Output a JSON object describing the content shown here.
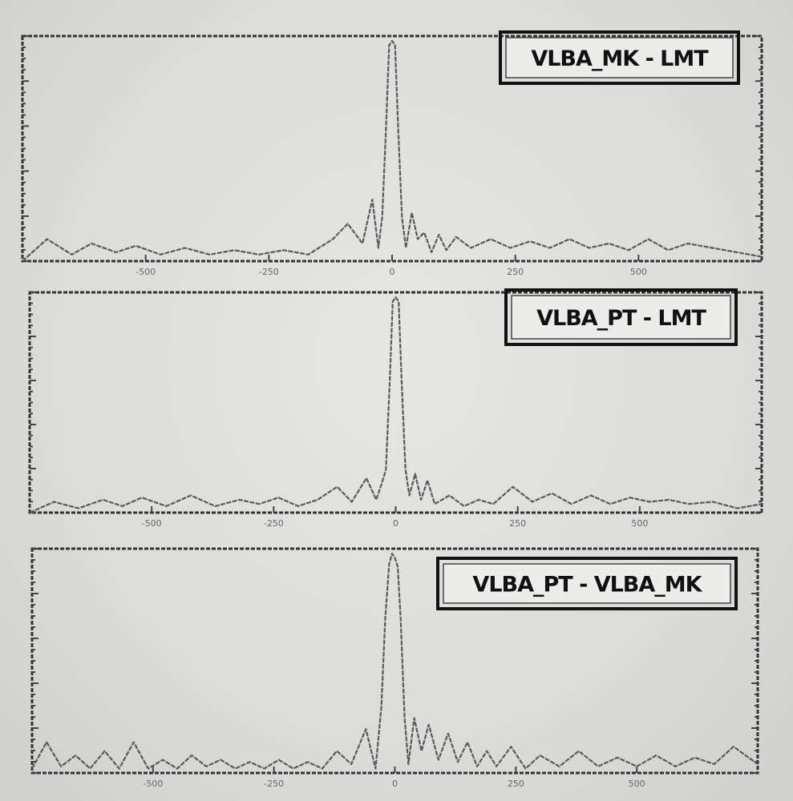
{
  "chart_data": [
    {
      "type": "line",
      "legend": "VLBA_MK - LMT",
      "legend_position": "top-right",
      "x_tick_labels": [
        "-500",
        "-250",
        "0",
        "250",
        "500"
      ],
      "xlim": [
        -750,
        750
      ],
      "ylim": [
        0,
        1
      ],
      "grid": false,
      "series": [
        {
          "x": [
            -750,
            -700,
            -650,
            -610,
            -560,
            -520,
            -470,
            -420,
            -370,
            -320,
            -270,
            -220,
            -170,
            -120,
            -90,
            -60,
            -40,
            -28,
            -20,
            -12,
            -6,
            0,
            6,
            12,
            20,
            28,
            40,
            52,
            65,
            80,
            95,
            110,
            130,
            160,
            200,
            240,
            280,
            320,
            360,
            400,
            440,
            480,
            520,
            560,
            600,
            650,
            700,
            750
          ],
          "y": [
            0.0,
            0.1,
            0.03,
            0.08,
            0.04,
            0.07,
            0.03,
            0.06,
            0.03,
            0.05,
            0.03,
            0.05,
            0.03,
            0.1,
            0.17,
            0.08,
            0.28,
            0.06,
            0.2,
            0.62,
            0.98,
            1.0,
            0.98,
            0.62,
            0.2,
            0.06,
            0.22,
            0.1,
            0.13,
            0.04,
            0.12,
            0.05,
            0.11,
            0.06,
            0.1,
            0.06,
            0.09,
            0.06,
            0.1,
            0.06,
            0.08,
            0.05,
            0.1,
            0.05,
            0.08,
            0.06,
            0.04,
            0.02
          ]
        }
      ]
    },
    {
      "type": "line",
      "legend": "VLBA_PT - LMT",
      "legend_position": "top-right",
      "x_tick_labels": [
        "-500",
        "-250",
        "0",
        "250",
        "500"
      ],
      "xlim": [
        -750,
        750
      ],
      "ylim": [
        0,
        1
      ],
      "grid": false,
      "series": [
        {
          "x": [
            -750,
            -700,
            -650,
            -600,
            -560,
            -520,
            -470,
            -420,
            -370,
            -320,
            -280,
            -240,
            -200,
            -160,
            -120,
            -90,
            -60,
            -40,
            -28,
            -20,
            -12,
            -6,
            0,
            6,
            12,
            20,
            28,
            40,
            52,
            65,
            80,
            95,
            110,
            140,
            170,
            200,
            240,
            280,
            320,
            360,
            400,
            440,
            480,
            520,
            560,
            600,
            650,
            700,
            750
          ],
          "y": [
            0.0,
            0.05,
            0.02,
            0.06,
            0.03,
            0.07,
            0.03,
            0.08,
            0.03,
            0.06,
            0.04,
            0.07,
            0.03,
            0.06,
            0.12,
            0.05,
            0.16,
            0.06,
            0.14,
            0.2,
            0.62,
            0.98,
            1.0,
            0.98,
            0.62,
            0.2,
            0.08,
            0.18,
            0.06,
            0.15,
            0.04,
            0.06,
            0.08,
            0.03,
            0.06,
            0.04,
            0.12,
            0.05,
            0.09,
            0.04,
            0.08,
            0.04,
            0.07,
            0.05,
            0.06,
            0.04,
            0.05,
            0.02,
            0.04
          ]
        }
      ]
    },
    {
      "type": "line",
      "legend": "VLBA_PT - VLBA_MK",
      "legend_position": "top-right",
      "x_tick_labels": [
        "-500",
        "-250",
        "0",
        "250",
        "500"
      ],
      "xlim": [
        -750,
        750
      ],
      "ylim": [
        0,
        1
      ],
      "grid": false,
      "series": [
        {
          "x": [
            -750,
            -720,
            -690,
            -660,
            -630,
            -600,
            -570,
            -540,
            -510,
            -480,
            -450,
            -420,
            -390,
            -360,
            -330,
            -300,
            -270,
            -240,
            -210,
            -180,
            -150,
            -120,
            -90,
            -60,
            -40,
            -28,
            -20,
            -12,
            -6,
            0,
            6,
            12,
            20,
            28,
            40,
            55,
            70,
            90,
            110,
            130,
            150,
            170,
            190,
            210,
            240,
            270,
            300,
            340,
            380,
            420,
            460,
            500,
            540,
            580,
            620,
            660,
            700,
            750
          ],
          "y": [
            0.02,
            0.14,
            0.03,
            0.08,
            0.02,
            0.1,
            0.02,
            0.14,
            0.02,
            0.06,
            0.02,
            0.08,
            0.03,
            0.06,
            0.02,
            0.05,
            0.02,
            0.06,
            0.02,
            0.05,
            0.02,
            0.1,
            0.04,
            0.2,
            0.02,
            0.3,
            0.7,
            0.95,
            1.0,
            0.98,
            0.94,
            0.7,
            0.25,
            0.04,
            0.25,
            0.1,
            0.22,
            0.06,
            0.18,
            0.05,
            0.14,
            0.03,
            0.1,
            0.03,
            0.12,
            0.02,
            0.08,
            0.03,
            0.1,
            0.03,
            0.07,
            0.03,
            0.08,
            0.03,
            0.07,
            0.04,
            0.12,
            0.04
          ]
        }
      ]
    }
  ]
}
